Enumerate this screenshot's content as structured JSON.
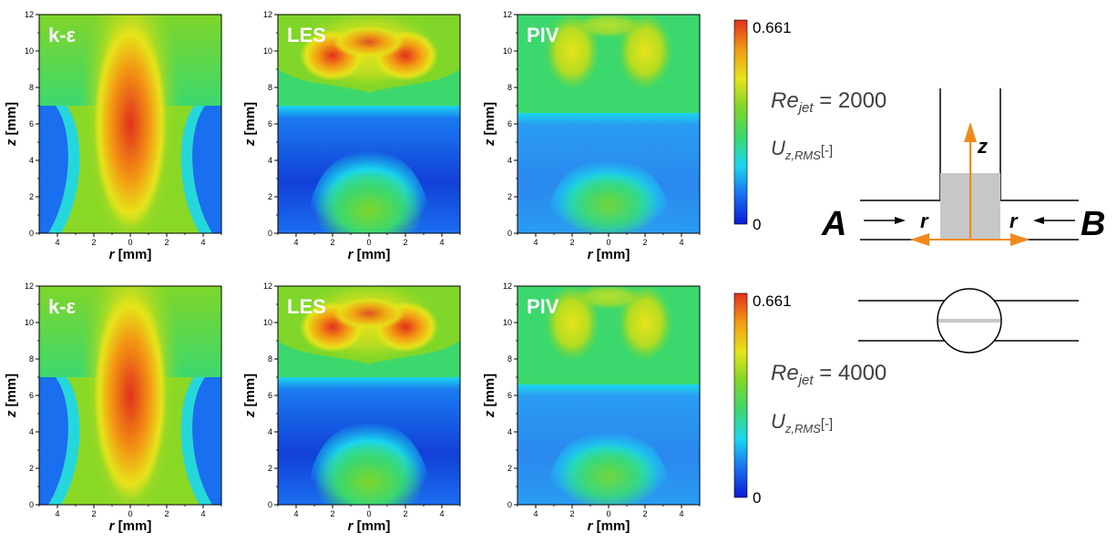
{
  "colorbar": {
    "max_label": "0.661",
    "min_label": "0",
    "colors": [
      "#0a18d8",
      "#1a6ef0",
      "#19d7f0",
      "#3cd86e",
      "#7fd629",
      "#e6e31a",
      "#f39a13",
      "#e2301c"
    ]
  },
  "rows": [
    {
      "re_label": "Re",
      "re_sub": "jet",
      "re_value": "= 2000",
      "u_label": "U",
      "u_sub": "z,RMS",
      "u_unit": "[-]"
    },
    {
      "re_label": "Re",
      "re_sub": "jet",
      "re_value": "= 4000",
      "u_label": "U",
      "u_sub": "z,RMS",
      "u_unit": "[-]"
    }
  ],
  "panel_titles": [
    "k-ε",
    "LES",
    "PIV"
  ],
  "axis": {
    "xlabel_italic": "r",
    "xlabel_unit": "[mm]",
    "ylabel_italic": "z",
    "ylabel_unit": "[mm]",
    "xticks": [
      "4",
      "2",
      "0",
      "2",
      "4"
    ],
    "yticks": [
      "0",
      "2",
      "4",
      "6",
      "8",
      "10",
      "12"
    ]
  },
  "schematic": {
    "inlet_a": "A",
    "inlet_b": "B",
    "r_left": "r",
    "r_right": "r",
    "z_label": "z",
    "orange": "#f08a1c",
    "gray": "#c7c7c7"
  },
  "chart_data": [
    {
      "type": "heatmap",
      "title": "k-ε",
      "row": "Re_jet = 2000",
      "xlabel": "r [mm]",
      "ylabel": "z [mm]",
      "xlim": [
        -5,
        5
      ],
      "ylim": [
        0,
        12
      ],
      "clim": [
        0,
        0.661
      ],
      "description_values": {
        "core_peak": 0.6,
        "outer_lower": 0.22,
        "upper": 0.45
      }
    },
    {
      "type": "heatmap",
      "title": "LES",
      "row": "Re_jet = 2000",
      "xlabel": "r [mm]",
      "ylabel": "z [mm]",
      "xlim": [
        -5,
        5
      ],
      "ylim": [
        0,
        12
      ],
      "clim": [
        0,
        0.661
      ],
      "description_values": {
        "upper_peak": 0.64,
        "lower_band": 0.12,
        "center_lower": 0.4
      }
    },
    {
      "type": "heatmap",
      "title": "PIV",
      "row": "Re_jet = 2000",
      "xlabel": "r [mm]",
      "ylabel": "z [mm]",
      "xlim": [
        -5,
        5
      ],
      "ylim": [
        0,
        12
      ],
      "clim": [
        0,
        0.661
      ],
      "description_values": {
        "upper_peak": 0.48,
        "lower_band": 0.2,
        "center_lower": 0.33
      }
    },
    {
      "type": "heatmap",
      "title": "k-ε",
      "row": "Re_jet = 4000",
      "xlabel": "r [mm]",
      "ylabel": "z [mm]",
      "xlim": [
        -5,
        5
      ],
      "ylim": [
        0,
        12
      ],
      "clim": [
        0,
        0.661
      ],
      "description_values": {
        "core_peak": 0.58,
        "outer_lower": 0.22,
        "upper": 0.45
      }
    },
    {
      "type": "heatmap",
      "title": "LES",
      "row": "Re_jet = 4000",
      "xlabel": "r [mm]",
      "ylabel": "z [mm]",
      "xlim": [
        -5,
        5
      ],
      "ylim": [
        0,
        12
      ],
      "clim": [
        0,
        0.661
      ],
      "description_values": {
        "upper_peak": 0.6,
        "lower_band": 0.1,
        "center_lower": 0.37
      }
    },
    {
      "type": "heatmap",
      "title": "PIV",
      "row": "Re_jet = 4000",
      "xlabel": "r [mm]",
      "ylabel": "z [mm]",
      "xlim": [
        -5,
        5
      ],
      "ylim": [
        0,
        12
      ],
      "clim": [
        0,
        0.661
      ],
      "description_values": {
        "upper_peak": 0.47,
        "lower_band": 0.2,
        "center_lower": 0.33
      }
    }
  ]
}
